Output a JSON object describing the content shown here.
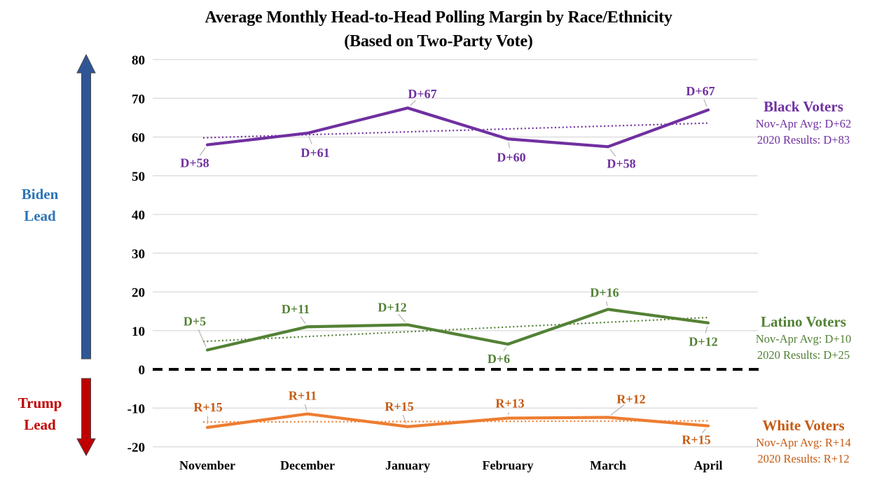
{
  "title": {
    "line1": "Average Monthly Head-to-Head Polling Margin by Race/Ethnicity",
    "line2": "(Based on Two-Party Vote)"
  },
  "annotations": {
    "biden": {
      "line1": "Biden",
      "line2": "Lead",
      "text_color": "#2E75B6",
      "arrow_color": "#2F5597"
    },
    "trump": {
      "line1": "Trump",
      "line2": "Lead",
      "text_color": "#C00000",
      "arrow_color": "#C00000"
    }
  },
  "chart_data": {
    "type": "line",
    "title": "Average Monthly Head-to-Head Polling Margin by Race/Ethnicity",
    "subtitle": "(Based on Two-Party Vote)",
    "categories": [
      "November",
      "December",
      "January",
      "February",
      "March",
      "April"
    ],
    "y_ticks": [
      80,
      70,
      60,
      50,
      40,
      30,
      20,
      10,
      0,
      -10,
      -20
    ],
    "ylim": [
      -20,
      80
    ],
    "grid": true,
    "grid_color": "#D9D9D9",
    "zero_line_color": "#000000",
    "leader_color": "#A6A6A6",
    "series": [
      {
        "name": "Black Voters",
        "color": "#7030A0",
        "label_color": "#7030A0",
        "values": [
          58,
          61,
          67.5,
          59.5,
          57.5,
          67
        ],
        "point_labels": [
          "D+58",
          "D+61",
          "D+67",
          "D+60",
          "D+58",
          "D+67"
        ],
        "label_offsets": [
          [
            -18,
            26
          ],
          [
            11,
            28
          ],
          [
            21,
            -20
          ],
          [
            5,
            26
          ],
          [
            19,
            24
          ],
          [
            -11,
            -27
          ]
        ],
        "trend": [
          59.8,
          63.6
        ],
        "side_label": {
          "heading": "Black Voters",
          "avg": "Nov-Apr Avg: D+62",
          "results": "2020 Results: D+83"
        }
      },
      {
        "name": "Latino Voters",
        "color": "#538135",
        "label_color": "#538135",
        "values": [
          5,
          11,
          11.5,
          6.5,
          15.5,
          12
        ],
        "point_labels": [
          "D+5",
          "D+11",
          "D+12",
          "D+6",
          "D+16",
          "D+12"
        ],
        "label_offsets": [
          [
            -18,
            -41
          ],
          [
            -17,
            -25
          ],
          [
            -22,
            -25
          ],
          [
            -13,
            21
          ],
          [
            -5,
            -24
          ],
          [
            -7,
            27
          ]
        ],
        "trend": [
          7.2,
          13.4
        ],
        "side_label": {
          "heading": "Latino Voters",
          "avg": "Nov-Apr Avg: D+10",
          "results": "2020 Results: D+25"
        }
      },
      {
        "name": "White Voters",
        "color": "#ED7D31",
        "label_color": "#C55A11",
        "values": [
          -15,
          -11.5,
          -14.8,
          -12.6,
          -12.4,
          -14.6
        ],
        "point_labels": [
          "R+15",
          "R+11",
          "R+15",
          "R+13",
          "R+12",
          "R+15"
        ],
        "label_offsets": [
          [
            1,
            -29
          ],
          [
            -7,
            -26
          ],
          [
            -12,
            -29
          ],
          [
            3,
            -21
          ],
          [
            33,
            -26
          ],
          [
            -17,
            20
          ]
        ],
        "trend": [
          -13.6,
          -13.3
        ],
        "side_label": {
          "heading": "White Voters",
          "avg": "Nov-Apr Avg: R+14",
          "results": "2020 Results: R+12"
        }
      }
    ]
  }
}
